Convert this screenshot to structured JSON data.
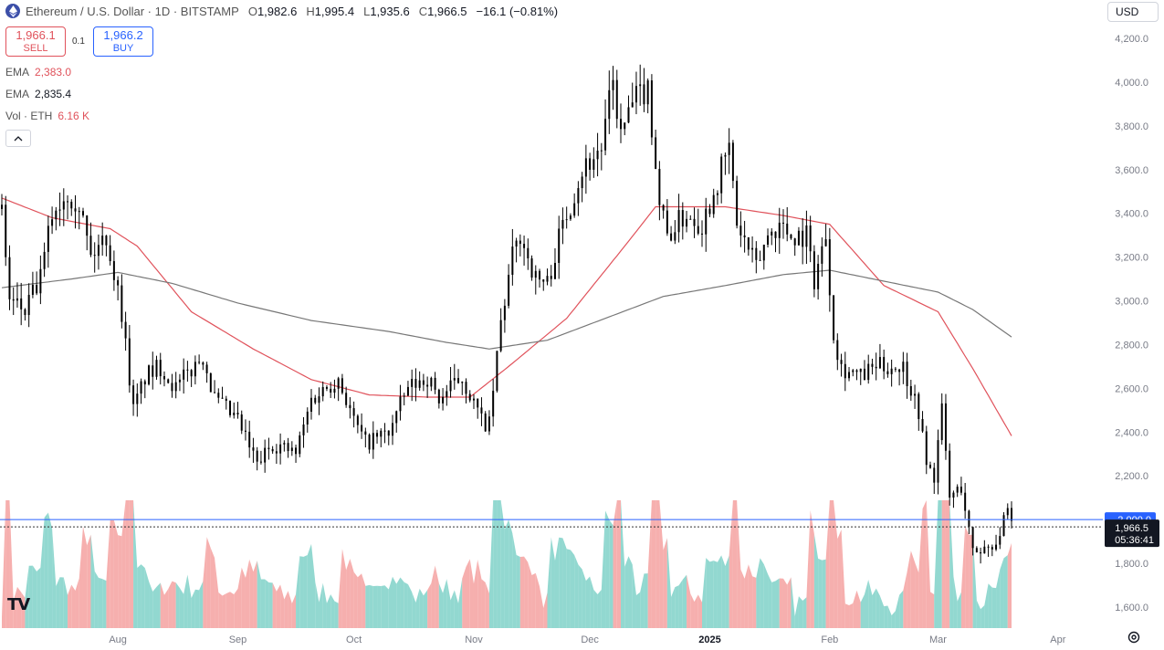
{
  "header": {
    "title": "Ethereum / U.S. Dollar · 1D · BITSTAMP",
    "ohlc": [
      {
        "k": "O",
        "v": "1,982.6"
      },
      {
        "k": "H",
        "v": "1,995.4"
      },
      {
        "k": "L",
        "v": "1,935.6"
      },
      {
        "k": "C",
        "v": "1,966.5"
      }
    ],
    "change": "−16.1 (−0.81%)"
  },
  "trade": {
    "sell_price": "1,966.1",
    "sell_label": "SELL",
    "spread": "0.1",
    "buy_price": "1,966.2",
    "buy_label": "BUY"
  },
  "indicators": [
    {
      "name": "EMA",
      "value": "2,383.0",
      "color": "#e0525b"
    },
    {
      "name": "EMA",
      "value": "2,835.4",
      "color": "#555555"
    },
    {
      "name": "Vol · ETH",
      "value": "6.16 K",
      "color": "#e0525b"
    }
  ],
  "currency": "USD",
  "price_tags": {
    "level": "2,000.0",
    "last": "1,966.5",
    "countdown": "05:36:41"
  },
  "colors": {
    "up": "#26a69a",
    "down": "#ef5350",
    "candle": "#000000",
    "ema_fast": "#e0525b",
    "ema_slow": "#777777",
    "vol_up": "#7fd1c8",
    "vol_down": "#f4a1a0",
    "level_line": "#2962ff"
  },
  "icons": {
    "logo": "ethereum-icon",
    "settings": "gear-icon",
    "collapse": "chevron-up-icon"
  },
  "chart_data": {
    "type": "candlestick",
    "title": "Ethereum / U.S. Dollar · 1D · BITSTAMP",
    "y_ticks": [
      "1,600.0",
      "1,800.0",
      "2,000.0",
      "2,200.0",
      "2,400.0",
      "2,600.0",
      "2,800.0",
      "3,000.0",
      "3,200.0",
      "3,400.0",
      "3,600.0",
      "3,800.0",
      "4,000.0",
      "4,200.0"
    ],
    "ylim": [
      1520,
      4260
    ],
    "x_ticks": [
      "Aug",
      "Sep",
      "Oct",
      "Nov",
      "Dec",
      "2025",
      "Feb",
      "Mar",
      "Apr"
    ],
    "x_tick_dates": [
      "2024-08-01",
      "2024-09-01",
      "2024-10-01",
      "2024-11-01",
      "2024-12-01",
      "2025-01-01",
      "2025-02-01",
      "2025-03-01",
      "2025-04-01"
    ],
    "date_range": [
      "2024-07-02",
      "2025-03-20"
    ],
    "horizontal_level": 2000,
    "last_close": 1966.5,
    "grid": false,
    "close_anchors": [
      [
        "2024-07-02",
        3420
      ],
      [
        "2024-07-04",
        3000
      ],
      [
        "2024-07-08",
        2950
      ],
      [
        "2024-07-12",
        3100
      ],
      [
        "2024-07-15",
        3400
      ],
      [
        "2024-07-19",
        3500
      ],
      [
        "2024-07-22",
        3450
      ],
      [
        "2024-07-25",
        3200
      ],
      [
        "2024-07-29",
        3300
      ],
      [
        "2024-08-02",
        2950
      ],
      [
        "2024-08-05",
        2500
      ],
      [
        "2024-08-08",
        2650
      ],
      [
        "2024-08-12",
        2700
      ],
      [
        "2024-08-16",
        2600
      ],
      [
        "2024-08-23",
        2750
      ],
      [
        "2024-08-26",
        2550
      ],
      [
        "2024-09-01",
        2450
      ],
      [
        "2024-09-06",
        2250
      ],
      [
        "2024-09-10",
        2350
      ],
      [
        "2024-09-16",
        2300
      ],
      [
        "2024-09-20",
        2550
      ],
      [
        "2024-09-27",
        2650
      ],
      [
        "2024-10-01",
        2450
      ],
      [
        "2024-10-04",
        2350
      ],
      [
        "2024-10-10",
        2400
      ],
      [
        "2024-10-15",
        2600
      ],
      [
        "2024-10-20",
        2650
      ],
      [
        "2024-10-23",
        2550
      ],
      [
        "2024-10-29",
        2650
      ],
      [
        "2024-11-03",
        2450
      ],
      [
        "2024-11-05",
        2430
      ],
      [
        "2024-11-08",
        2900
      ],
      [
        "2024-11-11",
        3200
      ],
      [
        "2024-11-13",
        3300
      ],
      [
        "2024-11-17",
        3100
      ],
      [
        "2024-11-20",
        3080
      ],
      [
        "2024-11-24",
        3350
      ],
      [
        "2024-11-29",
        3600
      ],
      [
        "2024-12-04",
        3700
      ],
      [
        "2024-12-07",
        4000
      ],
      [
        "2024-12-09",
        3750
      ],
      [
        "2024-12-12",
        3900
      ],
      [
        "2024-12-16",
        3980
      ],
      [
        "2024-12-19",
        3450
      ],
      [
        "2024-12-21",
        3300
      ],
      [
        "2024-12-26",
        3400
      ],
      [
        "2024-12-30",
        3350
      ],
      [
        "2025-01-06",
        3700
      ],
      [
        "2025-01-08",
        3350
      ],
      [
        "2025-01-13",
        3150
      ],
      [
        "2025-01-16",
        3300
      ],
      [
        "2025-01-19",
        3350
      ],
      [
        "2025-01-22",
        3300
      ],
      [
        "2025-01-26",
        3300
      ],
      [
        "2025-01-28",
        3100
      ],
      [
        "2025-01-31",
        3300
      ],
      [
        "2025-02-02",
        2850
      ],
      [
        "2025-02-04",
        2700
      ],
      [
        "2025-02-09",
        2650
      ],
      [
        "2025-02-13",
        2700
      ],
      [
        "2025-02-20",
        2700
      ],
      [
        "2025-02-24",
        2500
      ],
      [
        "2025-02-26",
        2250
      ],
      [
        "2025-02-28",
        2200
      ],
      [
        "2025-03-02",
        2500
      ],
      [
        "2025-03-04",
        2100
      ],
      [
        "2025-03-07",
        2150
      ],
      [
        "2025-03-10",
        1850
      ],
      [
        "2025-03-13",
        1870
      ],
      [
        "2025-03-16",
        1900
      ],
      [
        "2025-03-19",
        2030
      ],
      [
        "2025-03-20",
        1966.5
      ]
    ],
    "series": [
      {
        "name": "EMA",
        "value": "2,383.0",
        "anchors": [
          [
            "2024-07-02",
            3470
          ],
          [
            "2024-07-15",
            3380
          ],
          [
            "2024-07-30",
            3330
          ],
          [
            "2024-08-06",
            3250
          ],
          [
            "2024-08-20",
            2950
          ],
          [
            "2024-09-05",
            2780
          ],
          [
            "2024-09-20",
            2640
          ],
          [
            "2024-10-05",
            2570
          ],
          [
            "2024-10-20",
            2560
          ],
          [
            "2024-10-31",
            2560
          ],
          [
            "2024-11-10",
            2700
          ],
          [
            "2024-11-25",
            2920
          ],
          [
            "2024-12-10",
            3250
          ],
          [
            "2024-12-18",
            3430
          ],
          [
            "2025-01-05",
            3430
          ],
          [
            "2025-01-20",
            3390
          ],
          [
            "2025-02-01",
            3350
          ],
          [
            "2025-02-15",
            3070
          ],
          [
            "2025-03-01",
            2950
          ],
          [
            "2025-03-10",
            2690
          ],
          [
            "2025-03-20",
            2383
          ]
        ]
      },
      {
        "name": "EMA",
        "value": "2,835.4",
        "anchors": [
          [
            "2024-07-02",
            3060
          ],
          [
            "2024-07-20",
            3100
          ],
          [
            "2024-08-01",
            3130
          ],
          [
            "2024-08-15",
            3080
          ],
          [
            "2024-09-01",
            2990
          ],
          [
            "2024-09-20",
            2910
          ],
          [
            "2024-10-10",
            2860
          ],
          [
            "2024-10-25",
            2810
          ],
          [
            "2024-11-05",
            2780
          ],
          [
            "2024-11-20",
            2820
          ],
          [
            "2024-12-05",
            2920
          ],
          [
            "2024-12-20",
            3020
          ],
          [
            "2025-01-05",
            3070
          ],
          [
            "2025-01-20",
            3120
          ],
          [
            "2025-02-01",
            3140
          ],
          [
            "2025-02-15",
            3090
          ],
          [
            "2025-03-01",
            3040
          ],
          [
            "2025-03-10",
            2960
          ],
          [
            "2025-03-20",
            2835
          ]
        ]
      },
      {
        "name": "Vol · ETH",
        "value": "6.16 K",
        "type": "volume"
      }
    ]
  }
}
